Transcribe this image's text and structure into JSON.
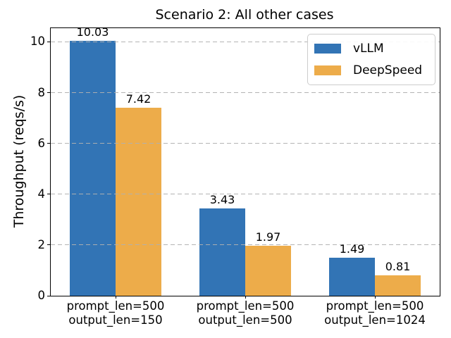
{
  "chart_data": {
    "type": "bar",
    "title": "Scenario 2: All other cases",
    "ylabel": "Throughput (reqs/s)",
    "xlabel": "",
    "categories": [
      "prompt_len=500\noutput_len=150",
      "prompt_len=500\noutput_len=500",
      "prompt_len=500\noutput_len=1024"
    ],
    "series": [
      {
        "name": "vLLM",
        "color": "#3274B5",
        "values": [
          10.03,
          3.43,
          1.49
        ]
      },
      {
        "name": "DeepSpeed",
        "color": "#EDAC4A",
        "values": [
          7.42,
          1.97,
          0.81
        ]
      }
    ],
    "value_labels": [
      [
        "10.03",
        "3.43",
        "1.49"
      ],
      [
        "7.42",
        "1.97",
        "0.81"
      ]
    ],
    "yticks": [
      0,
      2,
      4,
      6,
      8,
      10
    ],
    "ylim": [
      0,
      10.54
    ],
    "grid": "horizontal-dashed",
    "grid_color": "#B0B0B0",
    "axes_color": "#000000",
    "background_color": "#FFFFFF",
    "legend_position": "upper-right",
    "legend_border_color": "#CCCCCC"
  }
}
